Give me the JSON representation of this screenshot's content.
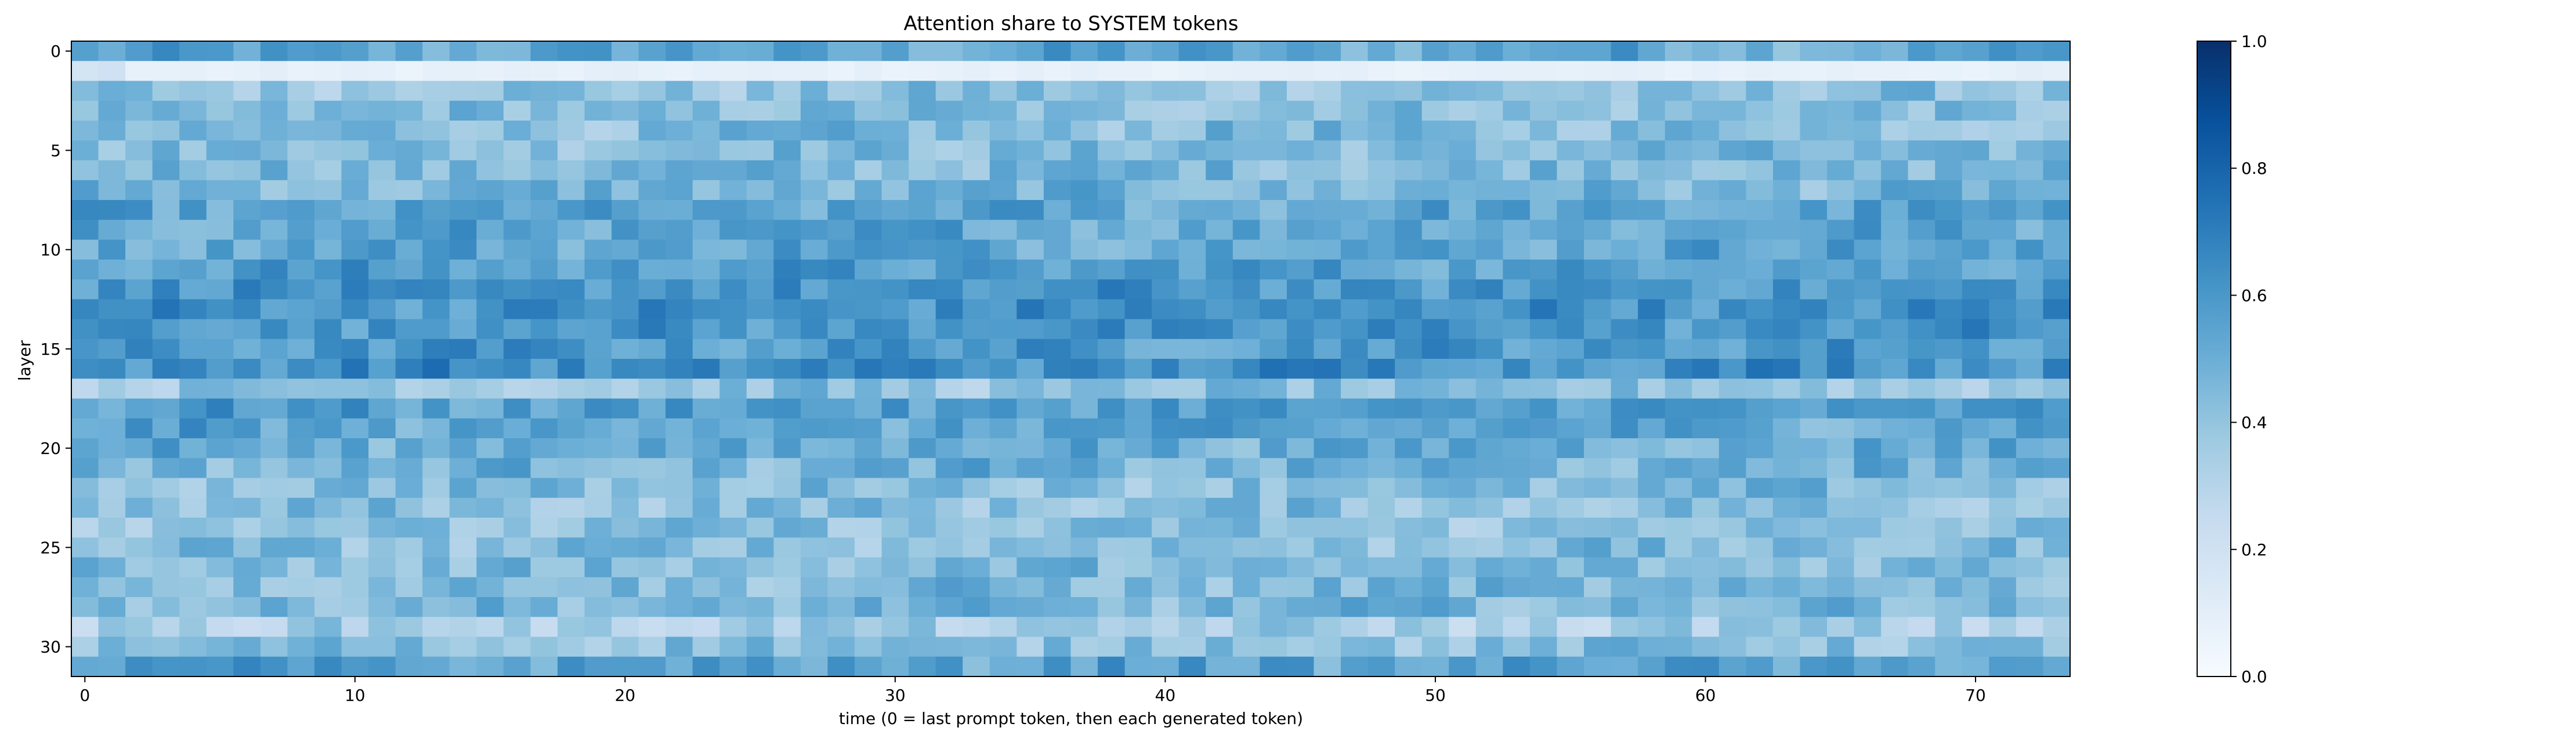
{
  "chart_data": {
    "type": "heatmap",
    "title": "Attention share to SYSTEM tokens",
    "xlabel": "time (0 = last prompt token, then each generated token)",
    "ylabel": "layer",
    "x_range": [
      0,
      73
    ],
    "y_range": [
      0,
      31
    ],
    "y_direction": "top-to-bottom",
    "x_ticks": [
      0,
      10,
      20,
      30,
      40,
      50,
      60,
      70
    ],
    "y_ticks": [
      0,
      5,
      10,
      15,
      20,
      25,
      30
    ],
    "colorbar": {
      "min": 0.0,
      "max": 1.0,
      "ticks": [
        "0.0",
        "0.2",
        "0.4",
        "0.6",
        "0.8",
        "1.0"
      ],
      "colormap": "Blues",
      "colors": [
        "#f7fbff",
        "#deebf7",
        "#c6dbef",
        "#9ecae1",
        "#6baed6",
        "#4292c6",
        "#2171b5",
        "#08519c",
        "#08306b"
      ]
    },
    "grid": false,
    "layer_means": [
      0.53,
      0.08,
      0.41,
      0.43,
      0.44,
      0.45,
      0.46,
      0.47,
      0.53,
      0.54,
      0.55,
      0.57,
      0.6,
      0.62,
      0.61,
      0.59,
      0.64,
      0.4,
      0.57,
      0.54,
      0.52,
      0.48,
      0.44,
      0.42,
      0.41,
      0.43,
      0.44,
      0.45,
      0.46,
      0.34,
      0.43,
      0.55
    ]
  }
}
